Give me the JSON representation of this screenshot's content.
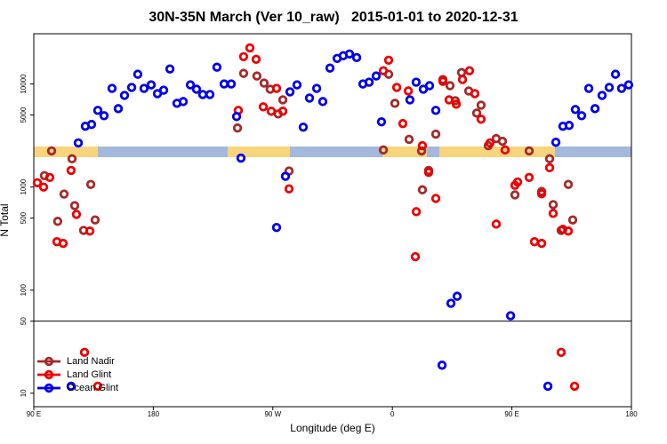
{
  "chart_data": {
    "type": "scatter",
    "title": "30N-35N March (Ver 10_raw)   2015-01-01 to 2020-12-31",
    "x_label": "Longitude (deg E)",
    "y_label": "N Total",
    "y_scale": "log",
    "y_break": 50,
    "legend": "bottom-left",
    "xlim": [
      90,
      540
    ],
    "xticks": [
      {
        "value": 90,
        "label": "90 E"
      },
      180,
      {
        "value": 270,
        "label": "90 W"
      },
      {
        "value": 360,
        "label": "0"
      },
      {
        "value": 450,
        "label": "90 E"
      },
      {
        "value": 540,
        "label": "180"
      }
    ],
    "ylim": [
      7.4,
      30700
    ],
    "yticks": [
      10,
      50,
      100,
      500,
      1000,
      5000,
      10000
    ],
    "series": [
      {
        "name": "Land Nadir",
        "color": "#a52a2a",
        "x": [
          103.4,
          98,
          118.8,
          112.8,
          120.8,
          108,
          132.9,
          136.2,
          127.5,
          243.4,
          248,
          258,
          263.4,
          268,
          274,
          277.5,
          282.2,
          353.2,
          357.2,
          361.9,
          372.6,
          382,
          387.3,
          382.6,
          392.7,
          398,
          403.4,
          407.4,
          412.1,
          417.5,
          423.5,
          426.8,
          432.2,
          438.2,
          442.9,
          463,
          452.3,
          472.4,
          478.4,
          481.1,
          492.5,
          495.8,
          487.1
        ],
        "values": [
          2240,
          1290,
          1880,
          855,
          660,
          465,
          1060,
          480,
          380,
          3740,
          12670,
          11940,
          10200,
          8890,
          5120,
          7020,
          1430,
          2290,
          12420,
          6490,
          2900,
          2240,
          1450,
          940,
          3260,
          11040,
          9620,
          6880,
          12900,
          8550,
          5220,
          6230,
          2520,
          2950,
          2780,
          2240,
          840,
          906,
          1880,
          675,
          1060,
          480,
          380
        ]
      },
      {
        "name": "Land Glint",
        "color": "#ee0000",
        "x": [
          92.7,
          97.4,
          102,
          118.1,
          107.4,
          112.1,
          122.1,
          132.2,
          128.2,
          138.2,
          244,
          252.7,
          248,
          257.4,
          262.8,
          268.8,
          272.8,
          277.5,
          282.2,
          353.2,
          357.2,
          363.3,
          367.9,
          372,
          378,
          382.6,
          387.3,
          377.3,
          392.7,
          398,
          402.7,
          408.1,
          412.8,
          418.1,
          422.1,
          426.8,
          433.5,
          438.2,
          444.9,
          452.3,
          454.3,
          463,
          472.4,
          478.4,
          481.1,
          467,
          472.4,
          488.4,
          492.5,
          487.1,
          497.2
        ],
        "values": [
          1100,
          1000,
          1240,
          1450,
          295,
          284,
          543,
          374,
          24.9,
          11.7,
          5540,
          22400,
          18400,
          17350,
          6000,
          5440,
          9060,
          5440,
          960,
          13430,
          17000,
          9250,
          4130,
          8550,
          577,
          2520,
          1390,
          211,
          775,
          10600,
          7020,
          6360,
          11040,
          13430,
          8050,
          4550,
          2680,
          437,
          2290,
          1040,
          1120,
          1240,
          860,
          1540,
          555,
          295,
          284,
          389,
          374,
          24.9,
          11.7
        ]
      },
      {
        "name": "Ocean Glint",
        "color": "#0000ee",
        "x": [
          118.1,
          123.5,
          128.8,
          133.5,
          138.2,
          142.9,
          148.9,
          153.6,
          158.3,
          163.7,
          168.3,
          173,
          178.4,
          183.1,
          187.8,
          192.5,
          197.8,
          202.5,
          207.9,
          212.5,
          217.2,
          222.6,
          227.9,
          233.3,
          238.7,
          242.7,
          246,
          272.8,
          279.5,
          282.9,
          288.2,
          292.9,
          297.6,
          303,
          307.6,
          313,
          318.4,
          323,
          327.7,
          333.1,
          337.8,
          342.5,
          347.8,
          351.8,
          373.2,
          377.9,
          383.3,
          388,
          392.7,
          397.4,
          404.1,
          408.8,
          449,
          477.1,
          483.1,
          488.4,
          493.1,
          497.8,
          502.5,
          507.9,
          512.6,
          517.9,
          523.3,
          528,
          532.6,
          537.9
        ],
        "values": [
          11.7,
          2680,
          3890,
          4050,
          5540,
          4920,
          9060,
          5760,
          7740,
          9250,
          12420,
          9060,
          9800,
          8050,
          8710,
          13970,
          6490,
          6750,
          9800,
          8890,
          7900,
          7900,
          14530,
          10000,
          10000,
          4830,
          1910,
          405,
          1270,
          8380,
          9800,
          3810,
          7300,
          9060,
          6750,
          14260,
          17700,
          18790,
          19520,
          18030,
          10000,
          10400,
          11940,
          4290,
          7020,
          10400,
          8890,
          9620,
          5540,
          18.7,
          74.5,
          87.2,
          56.5,
          11.7,
          2720,
          3890,
          3960,
          5650,
          4920,
          9060,
          5760,
          7740,
          9250,
          12420,
          9060,
          9800
        ]
      }
    ]
  }
}
